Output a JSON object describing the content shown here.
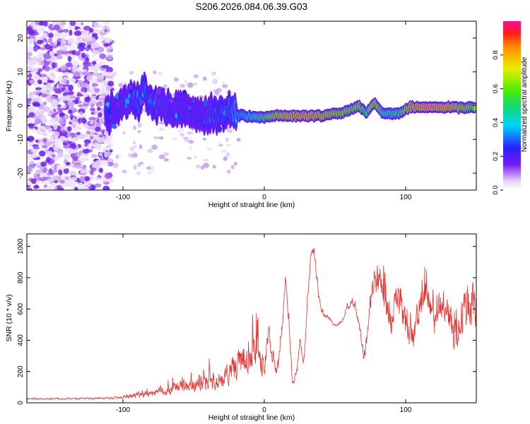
{
  "title": "S206.2026.084.06.39.G03",
  "chart_data": [
    {
      "type": "heatmap",
      "name": "spectrogram",
      "xlabel": "Height of straight line (km)",
      "ylabel": "Frequency (Hz)",
      "xlim": [
        -168,
        150
      ],
      "ylim": [
        -25,
        25
      ],
      "xticks": [
        -100,
        0,
        100
      ],
      "yticks": [
        -20,
        -10,
        0,
        10,
        20
      ],
      "colorbar": {
        "label": "Normalized spectral amplitude",
        "range": [
          0,
          1
        ],
        "ticks": [
          0.0,
          0.2,
          0.4,
          0.6,
          0.8
        ]
      },
      "ridge": {
        "x": [
          -110,
          -95,
          -85,
          -75,
          -60,
          -45,
          -35,
          -25,
          -15,
          -5,
          10,
          25,
          40,
          55,
          63,
          67,
          72,
          78,
          83,
          90,
          97,
          103,
          115,
          130,
          148
        ],
        "freq": [
          -2,
          2,
          3,
          0,
          -1,
          -2,
          -3,
          -2,
          -3,
          -3.5,
          -3,
          -3,
          -3,
          -2,
          -1,
          0,
          -2,
          1,
          -2,
          -2.5,
          -2,
          -0.5,
          -0.5,
          -0.5,
          -0.5
        ],
        "amplitude": [
          0.25,
          0.3,
          0.35,
          0.3,
          0.25,
          0.25,
          0.3,
          0.35,
          0.45,
          0.55,
          0.85,
          0.95,
          0.9,
          0.8,
          0.7,
          0.8,
          0.6,
          0.9,
          0.6,
          0.55,
          0.65,
          0.9,
          1.0,
          0.95,
          0.7
        ]
      }
    },
    {
      "type": "line",
      "name": "snr",
      "xlabel": "Height of straight line (km)",
      "ylabel": "SNR (10 * v/v)",
      "xlim": [
        -168,
        150
      ],
      "ylim": [
        0,
        1080
      ],
      "xticks": [
        -100,
        0,
        100
      ],
      "yticks": [
        0,
        200,
        400,
        600,
        800,
        1000
      ],
      "color": "#e8322e",
      "envelope": {
        "x": [
          -168,
          -140,
          -120,
          -100,
          -90,
          -80,
          -70,
          -60,
          -50,
          -40,
          -30,
          -25,
          -20,
          -15,
          -10,
          -5,
          0,
          3,
          5,
          8,
          10,
          13,
          15,
          18,
          20,
          23,
          25,
          28,
          30,
          33,
          35,
          38,
          40,
          42,
          45,
          48,
          50,
          55,
          58,
          60,
          62,
          65,
          68,
          70,
          72,
          75,
          78,
          80,
          82,
          85,
          88,
          90,
          92,
          95,
          98,
          100,
          105,
          110,
          115,
          120,
          125,
          130,
          135,
          140,
          145,
          150
        ],
        "y": [
          25,
          25,
          28,
          35,
          50,
          60,
          80,
          100,
          110,
          130,
          150,
          200,
          230,
          280,
          300,
          350,
          200,
          470,
          300,
          200,
          250,
          550,
          830,
          400,
          120,
          200,
          400,
          250,
          600,
          950,
          980,
          700,
          600,
          560,
          550,
          510,
          490,
          520,
          600,
          620,
          650,
          580,
          450,
          280,
          360,
          650,
          790,
          760,
          800,
          650,
          550,
          500,
          650,
          660,
          560,
          510,
          400,
          620,
          680,
          500,
          620,
          600,
          400,
          560,
          650,
          600
        ],
        "spread": [
          10,
          10,
          12,
          20,
          40,
          50,
          70,
          100,
          100,
          130,
          150,
          180,
          200,
          220,
          250,
          250,
          150,
          120,
          120,
          100,
          100,
          80,
          80,
          80,
          60,
          60,
          60,
          60,
          50,
          60,
          60,
          60,
          40,
          30,
          30,
          20,
          20,
          20,
          40,
          40,
          40,
          40,
          60,
          60,
          80,
          120,
          200,
          200,
          200,
          220,
          220,
          200,
          200,
          200,
          200,
          220,
          220,
          250,
          220,
          200,
          220,
          250,
          250,
          300,
          350,
          300
        ]
      }
    }
  ]
}
